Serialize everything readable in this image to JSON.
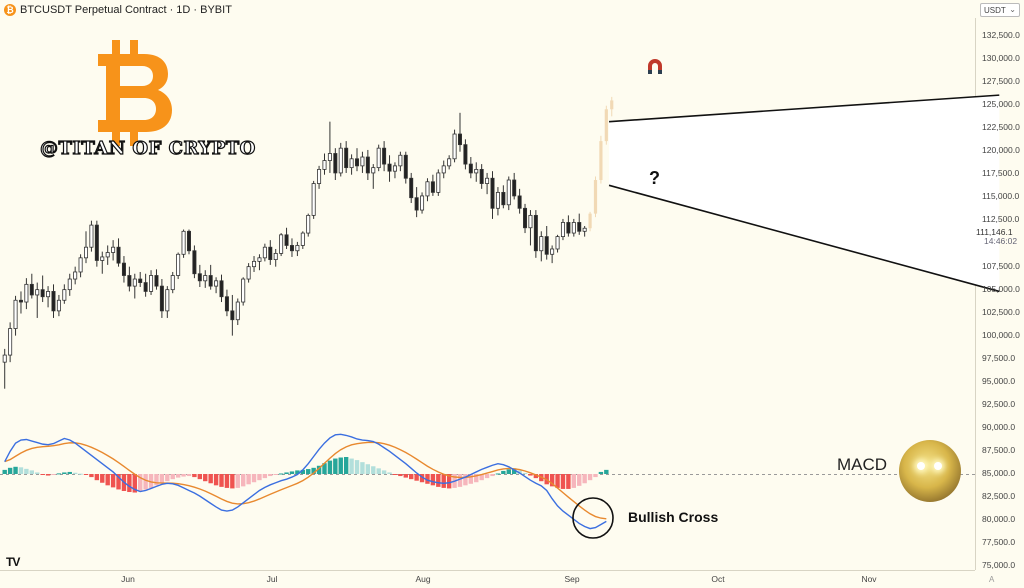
{
  "header": {
    "title": "BTCUSDT Perpetual Contract · 1D · BYBIT",
    "logo_glyph": "₿"
  },
  "currency_selector": {
    "value": "USDT"
  },
  "watermark_text": "@TITAN OF CRYPTO",
  "annotations": {
    "question": "?",
    "macd_label": "MACD",
    "bullish_label": "Bullish Cross"
  },
  "price_axis": {
    "ticks": [
      "132,500.0",
      "130,000.0",
      "127,500.0",
      "125,000.0",
      "122,500.0",
      "120,000.0",
      "117,500.0",
      "115,000.0",
      "112,500.0",
      "107,500.0",
      "105,000.0",
      "102,500.0",
      "100,000.0",
      "97,500.0",
      "95,000.0",
      "92,500.0",
      "90,000.0",
      "87,500.0",
      "85,000.0",
      "82,500.0",
      "80,000.0",
      "77,500.0",
      "75,000.0"
    ],
    "last_price": "111,146.1",
    "countdown": "14:46:02"
  },
  "time_axis": {
    "labels": [
      "Jun",
      "Jul",
      "Aug",
      "Sep",
      "Oct",
      "Nov"
    ]
  },
  "colors": {
    "bull": "#ffffff",
    "bear": "#222222",
    "wick": "#333333",
    "projection": "#f1d9b5",
    "macd_line": "#3b6fe0",
    "signal_line": "#e8892f",
    "hist_up_strong": "#26a69a",
    "hist_up_weak": "#b2dfdb",
    "hist_down_strong": "#ef5350",
    "hist_down_weak": "#f6b6bc",
    "wedge_fill": "#ffffff",
    "background": "#fefcf0",
    "bitcoin_orange": "#f7931a"
  },
  "chart_data": {
    "type": "candlestick",
    "symbol": "BTCUSDT",
    "interval": "1D",
    "ylim": [
      75000,
      133500
    ],
    "price_candles": [
      [
        96000,
        97500,
        93000,
        96800
      ],
      [
        96800,
        100500,
        96000,
        99800
      ],
      [
        99800,
        103500,
        99000,
        103000
      ],
      [
        103000,
        104000,
        101500,
        102800
      ],
      [
        102800,
        105500,
        102000,
        104800
      ],
      [
        104800,
        106000,
        103200,
        103600
      ],
      [
        103600,
        105000,
        101000,
        104200
      ],
      [
        104200,
        105800,
        102800,
        103400
      ],
      [
        103400,
        104600,
        102200,
        104000
      ],
      [
        104000,
        104800,
        101000,
        101800
      ],
      [
        101800,
        103600,
        101200,
        103000
      ],
      [
        103000,
        104800,
        102600,
        104200
      ],
      [
        104200,
        106000,
        103500,
        105400
      ],
      [
        105400,
        106800,
        104800,
        106200
      ],
      [
        106200,
        108200,
        105600,
        107800
      ],
      [
        107800,
        110800,
        107200,
        109000
      ],
      [
        109000,
        112000,
        108500,
        111500
      ],
      [
        111500,
        112000,
        106800,
        107500
      ],
      [
        107500,
        108500,
        106000,
        107900
      ],
      [
        107900,
        109200,
        107000,
        108400
      ],
      [
        108400,
        109800,
        107500,
        109000
      ],
      [
        109000,
        110000,
        106800,
        107200
      ],
      [
        107200,
        108000,
        105000,
        105800
      ],
      [
        105800,
        106800,
        104000,
        104600
      ],
      [
        104600,
        106000,
        103200,
        105400
      ],
      [
        105400,
        106200,
        104500,
        105000
      ],
      [
        105000,
        106000,
        103400,
        104000
      ],
      [
        104000,
        106400,
        103600,
        105800
      ],
      [
        105800,
        106500,
        104200,
        104600
      ],
      [
        104600,
        105400,
        101000,
        101800
      ],
      [
        101800,
        104600,
        101000,
        104200
      ],
      [
        104200,
        106200,
        103800,
        105800
      ],
      [
        105800,
        108400,
        105400,
        108200
      ],
      [
        108200,
        111000,
        107800,
        110800
      ],
      [
        110800,
        111000,
        108200,
        108600
      ],
      [
        108600,
        109200,
        105500,
        106000
      ],
      [
        106000,
        107000,
        104500,
        105200
      ],
      [
        105200,
        106400,
        104400,
        105800
      ],
      [
        105800,
        107000,
        104200,
        104600
      ],
      [
        104600,
        105600,
        103800,
        105200
      ],
      [
        105200,
        105900,
        102800,
        103400
      ],
      [
        103400,
        104200,
        101200,
        101800
      ],
      [
        101800,
        103600,
        99000,
        100800
      ],
      [
        100800,
        103200,
        100200,
        102800
      ],
      [
        102800,
        105600,
        102400,
        105400
      ],
      [
        105400,
        107200,
        105000,
        106800
      ],
      [
        106800,
        108000,
        106200,
        107400
      ],
      [
        107400,
        108200,
        106400,
        107800
      ],
      [
        107800,
        109400,
        107400,
        109000
      ],
      [
        109000,
        109800,
        107000,
        107600
      ],
      [
        107600,
        108800,
        106800,
        108300
      ],
      [
        108300,
        110600,
        108000,
        110400
      ],
      [
        110400,
        111200,
        108800,
        109200
      ],
      [
        109200,
        110000,
        107900,
        108600
      ],
      [
        108600,
        109600,
        108000,
        109200
      ],
      [
        109200,
        110800,
        108800,
        110600
      ],
      [
        110600,
        112800,
        110200,
        112600
      ],
      [
        112600,
        116500,
        112200,
        116200
      ],
      [
        116200,
        118200,
        115600,
        117800
      ],
      [
        117800,
        119600,
        117200,
        118800
      ],
      [
        118800,
        123200,
        117400,
        119600
      ],
      [
        119600,
        120200,
        116600,
        117400
      ],
      [
        117400,
        120800,
        117000,
        120200
      ],
      [
        120200,
        121000,
        117400,
        118000
      ],
      [
        118000,
        119500,
        117200,
        119000
      ],
      [
        119000,
        120200,
        117600,
        118200
      ],
      [
        118200,
        119800,
        117400,
        119200
      ],
      [
        119200,
        120000,
        116600,
        117400
      ],
      [
        117400,
        118400,
        115600,
        118000
      ],
      [
        118000,
        120600,
        117600,
        120200
      ],
      [
        120200,
        121000,
        117600,
        118400
      ],
      [
        118400,
        119400,
        116400,
        117600
      ],
      [
        117600,
        118600,
        116800,
        118200
      ],
      [
        118200,
        119800,
        117600,
        119400
      ],
      [
        119400,
        119800,
        116200,
        116800
      ],
      [
        116800,
        117400,
        114000,
        114600
      ],
      [
        114600,
        115800,
        112400,
        113200
      ],
      [
        113200,
        115200,
        112800,
        114800
      ],
      [
        114800,
        116800,
        114200,
        116400
      ],
      [
        116400,
        117200,
        114800,
        115200
      ],
      [
        115200,
        117800,
        114800,
        117400
      ],
      [
        117400,
        118800,
        116800,
        118200
      ],
      [
        118200,
        119400,
        117800,
        119000
      ],
      [
        119000,
        122300,
        118600,
        121800
      ],
      [
        121800,
        124200,
        119800,
        120600
      ],
      [
        120600,
        121200,
        117800,
        118400
      ],
      [
        118400,
        119200,
        116800,
        117400
      ],
      [
        117400,
        118600,
        116400,
        117800
      ],
      [
        117800,
        118400,
        115600,
        116200
      ],
      [
        116200,
        117400,
        115000,
        116800
      ],
      [
        116800,
        117600,
        112200,
        113400
      ],
      [
        113400,
        115800,
        112600,
        115200
      ],
      [
        115200,
        116000,
        113400,
        113800
      ],
      [
        113800,
        117000,
        113200,
        116600
      ],
      [
        116600,
        117400,
        114400,
        114800
      ],
      [
        114800,
        115600,
        112800,
        113400
      ],
      [
        113400,
        113900,
        110600,
        111200
      ],
      [
        111200,
        113200,
        109200,
        112600
      ],
      [
        112600,
        113200,
        107800,
        108600
      ],
      [
        108600,
        110800,
        107400,
        110200
      ],
      [
        110200,
        111400,
        107600,
        108200
      ],
      [
        108200,
        109200,
        107200,
        108800
      ],
      [
        108800,
        110400,
        108400,
        110200
      ],
      [
        110200,
        112200,
        109800,
        111800
      ],
      [
        111800,
        112600,
        110200,
        110600
      ],
      [
        110600,
        112200,
        110200,
        111800
      ],
      [
        111800,
        112800,
        110400,
        110800
      ],
      [
        110800,
        111400,
        110200,
        111146
      ]
    ],
    "projection": [
      [
        111146,
        113000,
        110800,
        112800
      ],
      [
        112800,
        117000,
        112400,
        116600
      ],
      [
        116600,
        121600,
        116200,
        121000
      ],
      [
        121000,
        125000,
        120600,
        124600
      ],
      [
        124600,
        126000,
        123800,
        125600
      ]
    ],
    "wedge": {
      "upper": [
        [
          111.5,
          123200
        ],
        [
          183.5,
          126200
        ]
      ],
      "lower": [
        [
          111.5,
          116000
        ],
        [
          183.5,
          104000
        ]
      ]
    },
    "macd": {
      "ylim": [
        -6000,
        5000
      ],
      "hist": [
        400,
        600,
        700,
        650,
        500,
        350,
        150,
        -50,
        -150,
        -100,
        60,
        150,
        200,
        120,
        30,
        -80,
        -300,
        -600,
        -850,
        -1100,
        -1300,
        -1500,
        -1650,
        -1750,
        -1800,
        -1650,
        -1500,
        -1350,
        -1100,
        -900,
        -700,
        -500,
        -350,
        -250,
        -200,
        -300,
        -500,
        -700,
        -900,
        -1100,
        -1250,
        -1350,
        -1400,
        -1350,
        -1200,
        -1000,
        -800,
        -600,
        -400,
        -200,
        -50,
        50,
        150,
        250,
        350,
        400,
        480,
        600,
        800,
        1050,
        1300,
        1500,
        1600,
        1650,
        1500,
        1350,
        1150,
        950,
        750,
        550,
        350,
        150,
        -50,
        -200,
        -350,
        -500,
        -650,
        -800,
        -950,
        -1100,
        -1250,
        -1350,
        -1400,
        -1350,
        -1250,
        -1100,
        -950,
        -800,
        -600,
        -400,
        -200,
        50,
        300,
        450,
        550,
        350,
        100,
        -150,
        -400,
        -700,
        -1000,
        -1200,
        -1350,
        -1450,
        -1450,
        -1350,
        -1150,
        -900,
        -600,
        -300,
        200,
        400
      ],
      "macd": [
        1200,
        2200,
        3000,
        3300,
        3350,
        3200,
        3050,
        2900,
        2850,
        2950,
        3200,
        3450,
        3300,
        3000,
        2600,
        2200,
        1800,
        1400,
        1000,
        600,
        200,
        -300,
        -800,
        -1200,
        -1500,
        -1700,
        -1600,
        -1400,
        -1200,
        -1000,
        -900,
        -950,
        -1100,
        -1350,
        -1600,
        -1850,
        -2150,
        -2500,
        -2850,
        -3200,
        -3500,
        -3600,
        -3500,
        -3200,
        -2800,
        -2400,
        -2000,
        -1600,
        -1300,
        -1050,
        -850,
        -650,
        -500,
        -300,
        -50,
        400,
        1000,
        1700,
        2400,
        3000,
        3500,
        3800,
        3850,
        3750,
        3600,
        3400,
        3300,
        3250,
        3150,
        2900,
        2550,
        2200,
        1800,
        1400,
        1000,
        550,
        100,
        -300,
        -600,
        -750,
        -850,
        -900,
        -850,
        -700,
        -500,
        -300,
        -50,
        200,
        450,
        650,
        850,
        1000,
        900,
        700,
        400,
        100,
        -250,
        -600,
        -900,
        -1150,
        -1600,
        -2400,
        -3100,
        -3600,
        -4000,
        -4400,
        -4800,
        -5100,
        -5300,
        -5200,
        -4900,
        -4600
      ]
    }
  }
}
